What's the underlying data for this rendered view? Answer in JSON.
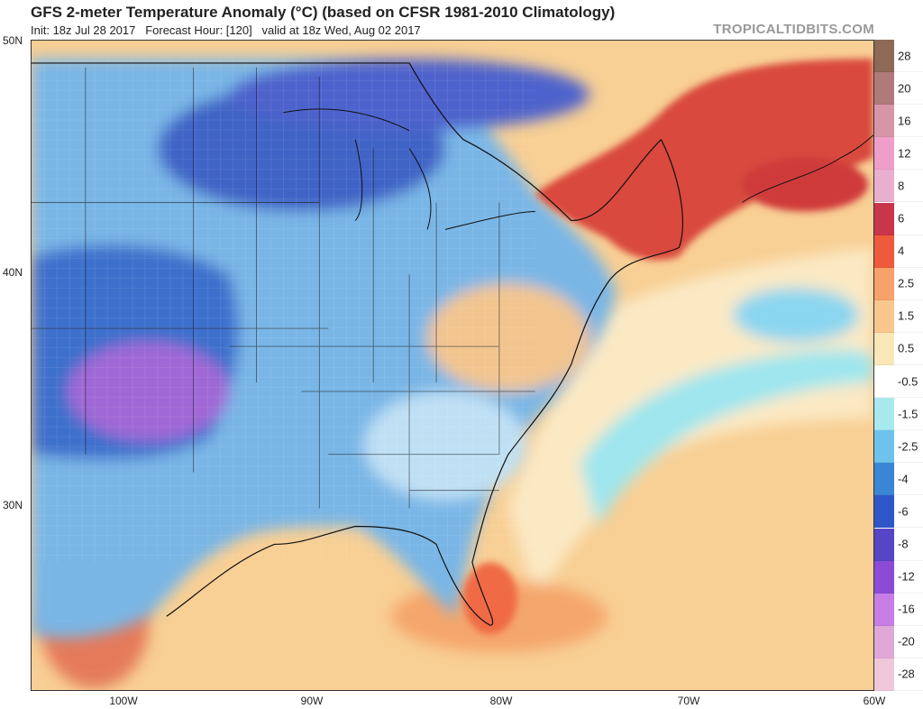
{
  "header": {
    "title": "GFS 2-meter Temperature Anomaly (°C) (based on CFSR 1981-2010 Climatology)",
    "init": "Init: 18z Jul 28 2017",
    "forecast": "Forecast Hour: [120]",
    "valid": "valid at 18z Wed, Aug 02 2017",
    "brand": "TROPICALTIDBITS.COM"
  },
  "map": {
    "lat_labels": [
      "50N",
      "40N",
      "30N"
    ],
    "lon_labels": [
      "100W",
      "90W",
      "80W",
      "70W",
      "60W"
    ]
  },
  "colorbar": {
    "labels": [
      "28",
      "20",
      "16",
      "12",
      "8",
      "6",
      "4",
      "2.5",
      "1.5",
      "0.5",
      "-0.5",
      "-1.5",
      "-2.5",
      "-4",
      "-6",
      "-8",
      "-12",
      "-16",
      "-20",
      "-28"
    ],
    "colors": [
      "#8c6a55",
      "#b07a7a",
      "#d795a8",
      "#ee9ec9",
      "#e9afce",
      "#c9364b",
      "#ef5a3c",
      "#f6a26a",
      "#f8c78d",
      "#fbe6b8",
      "#ffffff",
      "#a7e9ee",
      "#6ec2ec",
      "#3b86d4",
      "#2f56c9",
      "#5446c4",
      "#8c4bd6",
      "#c67de4",
      "#e0a8d8",
      "#f0c7d8"
    ]
  }
}
